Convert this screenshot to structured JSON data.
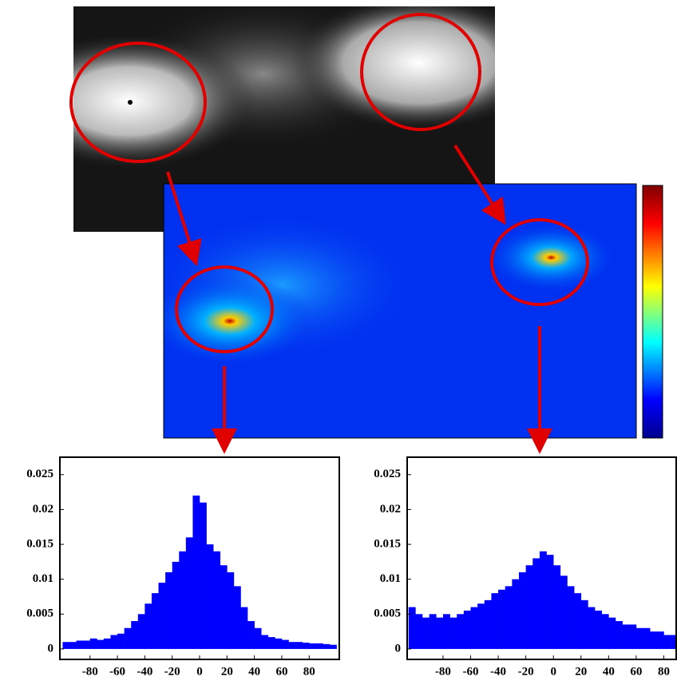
{
  "chart_data": [
    {
      "type": "histogram",
      "color": "#0000ff",
      "bins": [
        -100,
        -95,
        -90,
        -85,
        -80,
        -75,
        -70,
        -65,
        -60,
        -55,
        -50,
        -45,
        -40,
        -35,
        -30,
        -25,
        -20,
        -15,
        -10,
        -5,
        0,
        5,
        10,
        15,
        20,
        25,
        30,
        35,
        40,
        45,
        50,
        55,
        60,
        65,
        70,
        75,
        80,
        85,
        90,
        95,
        100
      ],
      "values": [
        0.001,
        0.001,
        0.0012,
        0.0012,
        0.0015,
        0.0013,
        0.0015,
        0.002,
        0.0022,
        0.003,
        0.004,
        0.005,
        0.0065,
        0.008,
        0.0095,
        0.011,
        0.0125,
        0.014,
        0.016,
        0.022,
        0.021,
        0.015,
        0.014,
        0.012,
        0.011,
        0.009,
        0.006,
        0.004,
        0.003,
        0.002,
        0.0017,
        0.0015,
        0.0013,
        0.001,
        0.001,
        0.0009,
        0.0008,
        0.0008,
        0.0007,
        0.0006
      ],
      "xlim": [
        -102,
        102
      ],
      "ylim": [
        -0.0015,
        0.0275
      ],
      "xticks": [
        -80,
        -60,
        -40,
        -20,
        0,
        20,
        40,
        60,
        80
      ],
      "yticks": [
        0,
        0.005,
        0.01,
        0.015,
        0.02,
        0.025
      ]
    },
    {
      "type": "histogram",
      "color": "#0000ff",
      "bins": [
        -105,
        -100,
        -95,
        -90,
        -85,
        -80,
        -75,
        -70,
        -65,
        -60,
        -55,
        -50,
        -45,
        -40,
        -35,
        -30,
        -25,
        -20,
        -15,
        -10,
        -5,
        0,
        5,
        10,
        15,
        20,
        25,
        30,
        35,
        40,
        45,
        50,
        55,
        60,
        65,
        70,
        75,
        80,
        85,
        90
      ],
      "values": [
        0.006,
        0.005,
        0.0045,
        0.005,
        0.0045,
        0.005,
        0.0045,
        0.005,
        0.0055,
        0.006,
        0.0065,
        0.007,
        0.008,
        0.0085,
        0.009,
        0.01,
        0.011,
        0.012,
        0.013,
        0.014,
        0.0135,
        0.012,
        0.0105,
        0.009,
        0.008,
        0.007,
        0.006,
        0.0055,
        0.005,
        0.0045,
        0.004,
        0.0035,
        0.0035,
        0.003,
        0.003,
        0.0025,
        0.0025,
        0.002,
        0.002
      ],
      "xlim": [
        -106,
        89
      ],
      "ylim": [
        -0.0015,
        0.0275
      ],
      "xticks": [
        -80,
        -60,
        -40,
        -20,
        0,
        20,
        40,
        60,
        80
      ],
      "yticks": [
        0,
        0.005,
        0.01,
        0.015,
        0.02,
        0.025
      ]
    }
  ]
}
